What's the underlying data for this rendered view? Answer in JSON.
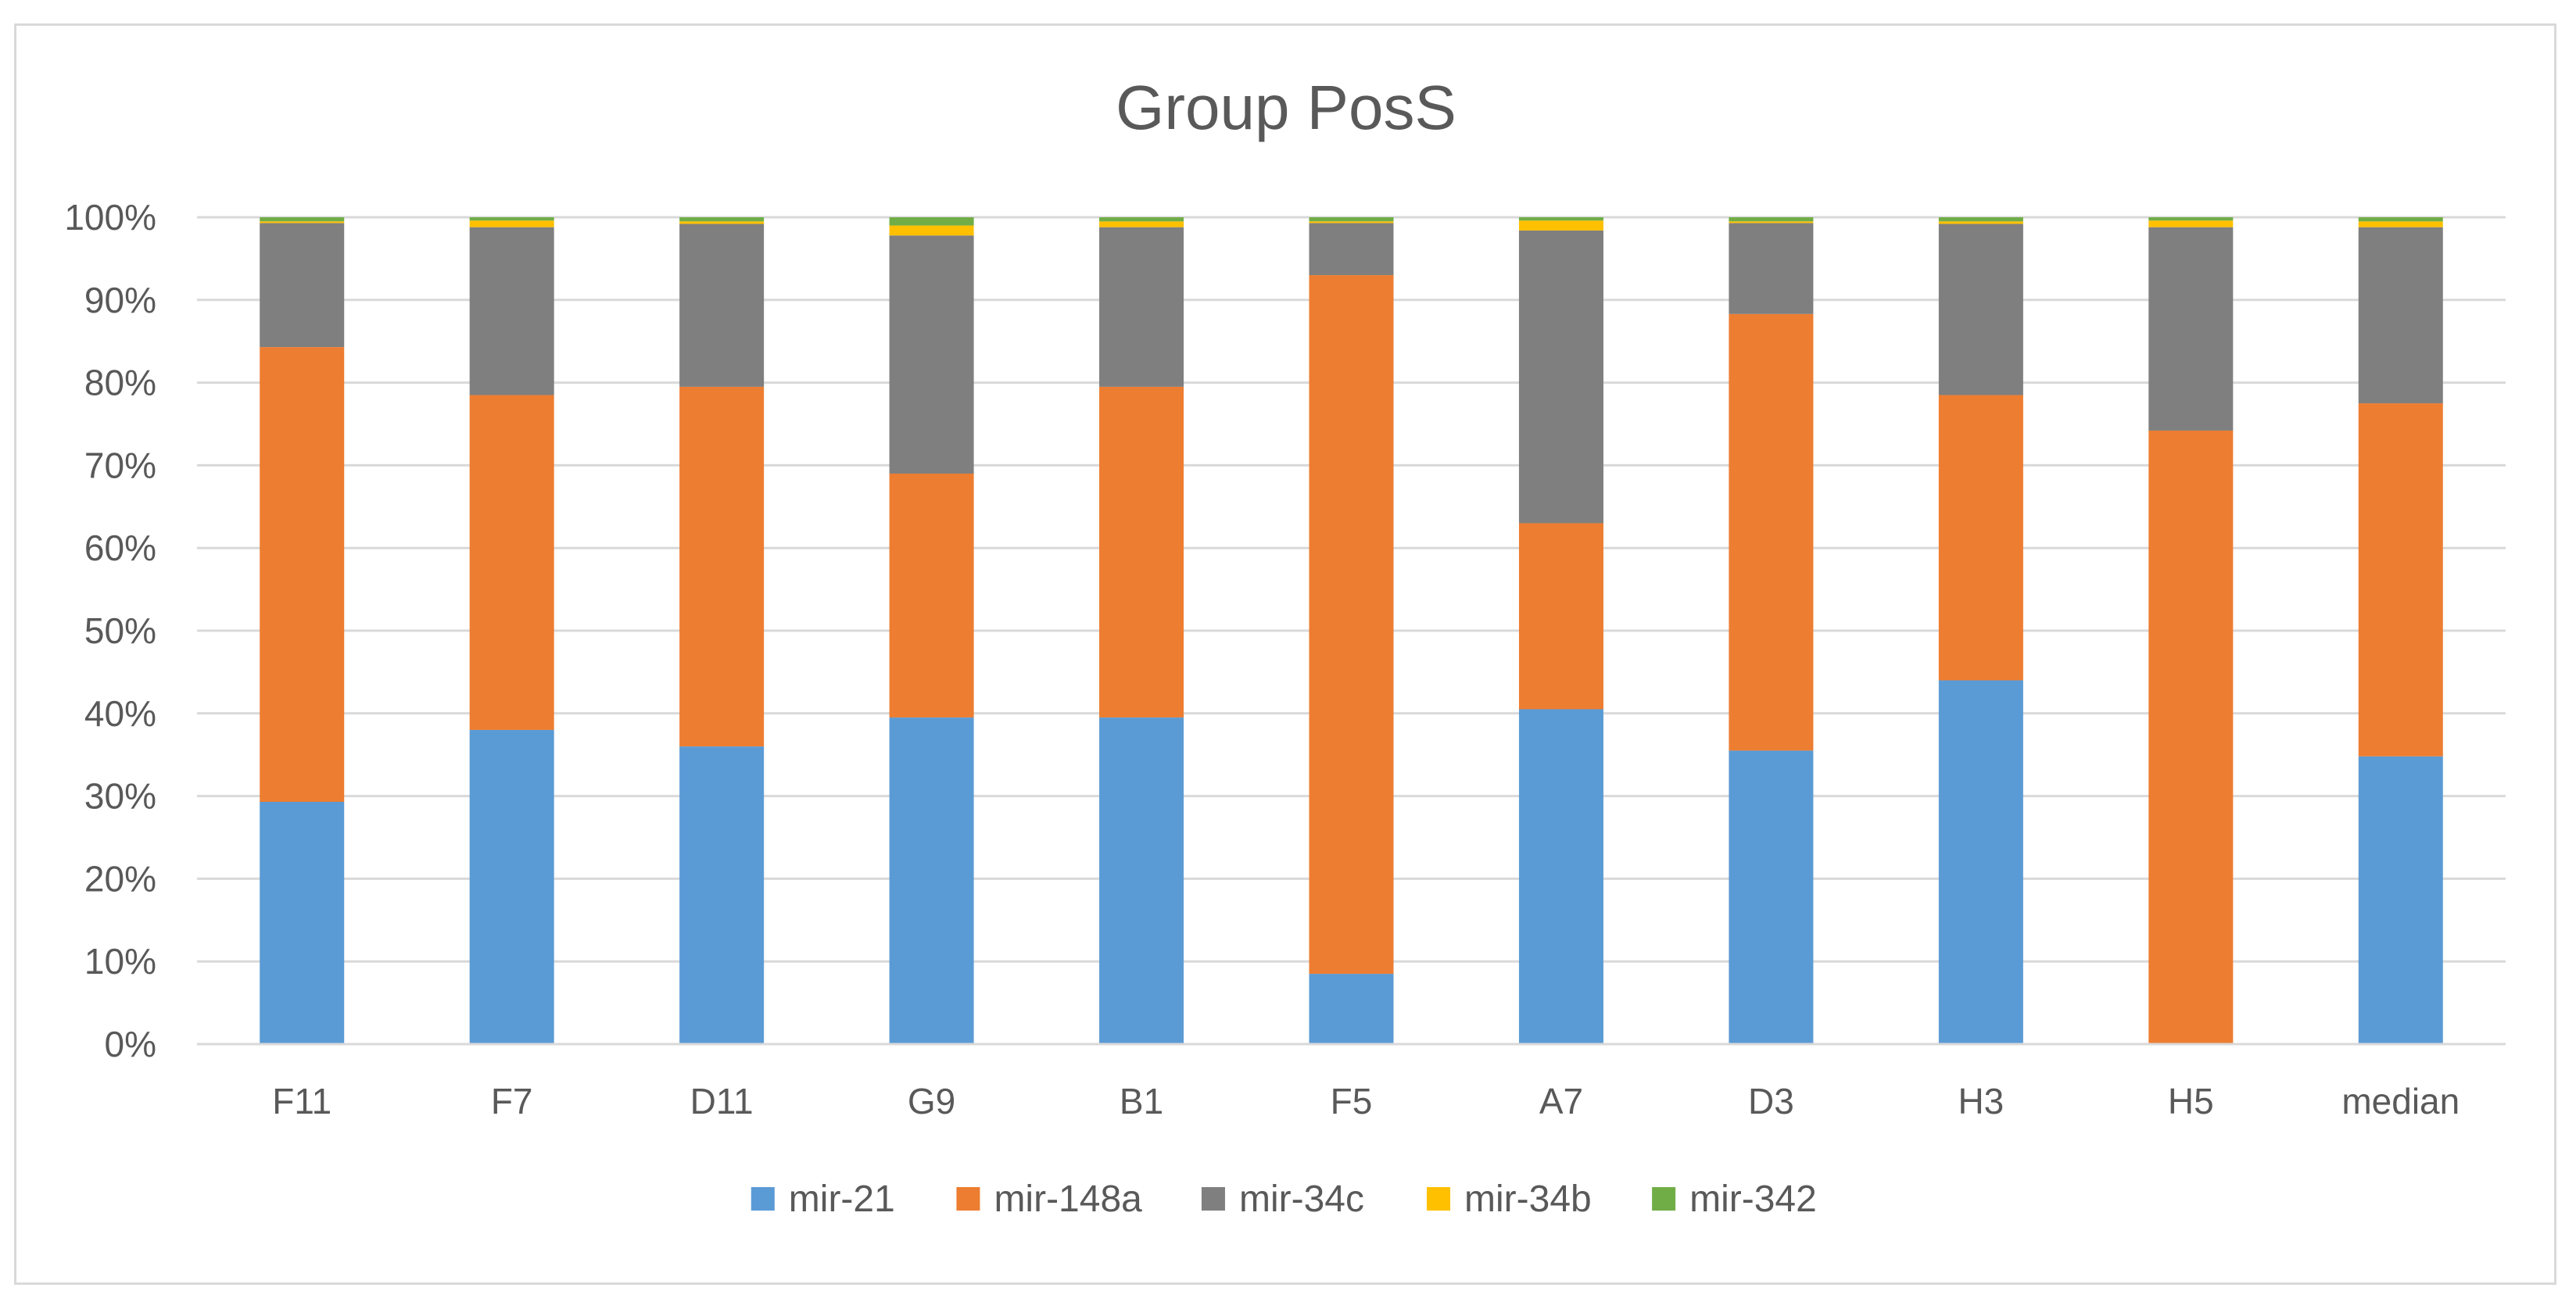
{
  "chart_data": {
    "type": "bar",
    "stacked": true,
    "percent_stacked": true,
    "title": "Group PosS",
    "xlabel": "",
    "ylabel": "",
    "ylim": [
      0,
      100
    ],
    "y_ticks": [
      "0%",
      "10%",
      "20%",
      "30%",
      "40%",
      "50%",
      "60%",
      "70%",
      "80%",
      "90%",
      "100%"
    ],
    "grid": true,
    "legend_position": "bottom",
    "categories": [
      "F11",
      "F7",
      "D11",
      "G9",
      "B1",
      "F5",
      "A7",
      "D3",
      "H3",
      "H5",
      "median"
    ],
    "series": [
      {
        "name": "mir-21",
        "color": "#5b9bd5",
        "values": [
          29.3,
          38.0,
          36.0,
          39.5,
          39.5,
          8.5,
          40.5,
          35.5,
          44.0,
          0.0,
          34.8
        ]
      },
      {
        "name": "mir-148a",
        "color": "#ed7d31",
        "values": [
          55.0,
          40.5,
          43.5,
          29.5,
          40.0,
          84.5,
          22.5,
          52.8,
          34.5,
          74.2,
          42.7
        ]
      },
      {
        "name": "mir-34c",
        "color": "#7f7f7f",
        "values": [
          15.0,
          20.3,
          19.7,
          28.8,
          19.3,
          6.3,
          35.4,
          11.0,
          20.7,
          24.6,
          21.3
        ]
      },
      {
        "name": "mir-34b",
        "color": "#ffc000",
        "values": [
          0.2,
          0.8,
          0.3,
          1.2,
          0.7,
          0.2,
          1.2,
          0.2,
          0.3,
          0.8,
          0.7
        ]
      },
      {
        "name": "mir-342",
        "color": "#70ad47",
        "values": [
          0.5,
          0.4,
          0.5,
          1.0,
          0.5,
          0.5,
          0.4,
          0.5,
          0.5,
          0.4,
          0.5
        ]
      }
    ]
  }
}
